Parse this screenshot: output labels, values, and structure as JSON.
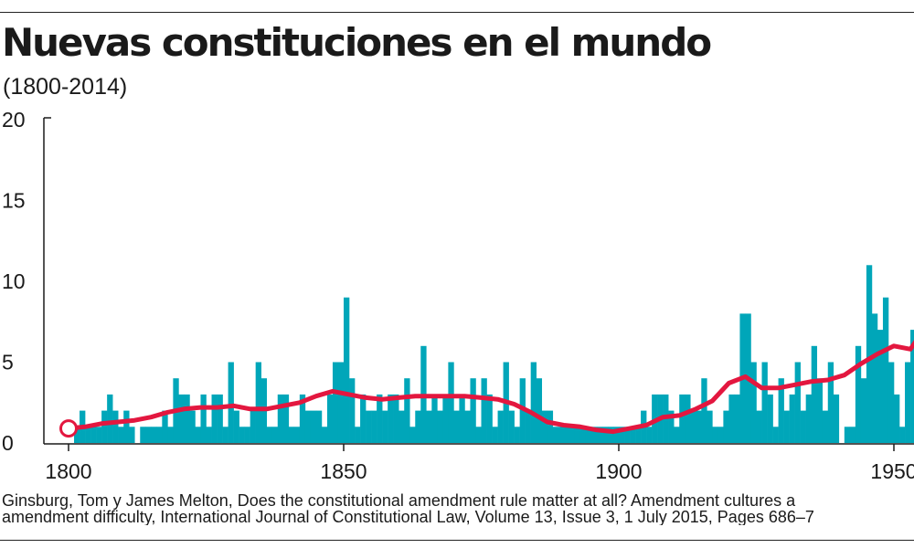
{
  "header": {
    "title": "Nuevas constituciones en el mundo",
    "subtitle": "(1800-2014)"
  },
  "source": {
    "line1": "Ginsburg, Tom y James Melton, Does the constitutional amendment rule matter at all? Amendment cultures a",
    "line2": "amendment difficulty, International Journal of Constitutional Law, Volume 13, Issue 3, 1 July 2015, Pages 686–7"
  },
  "colors": {
    "bars": "#00a6b9",
    "trend": "#e3173f",
    "marker_fill": "#ffffff",
    "axis": "#1a1a1a"
  },
  "chart_data": {
    "type": "bar",
    "title": "Nuevas constituciones en el mundo",
    "subtitle": "(1800-2014)",
    "xlabel": "",
    "ylabel": "",
    "xlim": [
      1799,
      1954
    ],
    "ylim": [
      0,
      20
    ],
    "x_ticks": [
      1800,
      1850,
      1900,
      1950
    ],
    "y_ticks": [
      0,
      5,
      10,
      15,
      20
    ],
    "grid": false,
    "legend": "none",
    "series": [
      {
        "type": "bar",
        "x": [
          1800,
          1801,
          1802,
          1803,
          1804,
          1805,
          1806,
          1807,
          1808,
          1809,
          1810,
          1811,
          1812,
          1813,
          1814,
          1815,
          1816,
          1817,
          1818,
          1819,
          1820,
          1821,
          1822,
          1823,
          1824,
          1825,
          1826,
          1827,
          1828,
          1829,
          1830,
          1831,
          1832,
          1833,
          1834,
          1835,
          1836,
          1837,
          1838,
          1839,
          1840,
          1841,
          1842,
          1843,
          1844,
          1845,
          1846,
          1847,
          1848,
          1849,
          1850,
          1851,
          1852,
          1853,
          1854,
          1855,
          1856,
          1857,
          1858,
          1859,
          1860,
          1861,
          1862,
          1863,
          1864,
          1865,
          1866,
          1867,
          1868,
          1869,
          1870,
          1871,
          1872,
          1873,
          1874,
          1875,
          1876,
          1877,
          1878,
          1879,
          1880,
          1881,
          1882,
          1883,
          1884,
          1885,
          1886,
          1887,
          1888,
          1889,
          1890,
          1891,
          1892,
          1893,
          1894,
          1895,
          1896,
          1897,
          1898,
          1899,
          1900,
          1901,
          1902,
          1903,
          1904,
          1905,
          1906,
          1907,
          1908,
          1909,
          1910,
          1911,
          1912,
          1913,
          1914,
          1915,
          1916,
          1917,
          1918,
          1919,
          1920,
          1921,
          1922,
          1923,
          1924,
          1925,
          1926,
          1927,
          1928,
          1929,
          1930,
          1931,
          1932,
          1933,
          1934,
          1935,
          1936,
          1937,
          1938,
          1939,
          1940,
          1941,
          1942,
          1943,
          1944,
          1945,
          1946,
          1947,
          1948,
          1949,
          1950,
          1951,
          1952,
          1953
        ],
        "values": [
          0,
          1,
          2,
          1,
          1,
          1,
          2,
          3,
          2,
          1,
          2,
          1,
          0,
          1,
          1,
          1,
          1,
          2,
          1,
          4,
          3,
          3,
          2,
          1,
          3,
          1,
          3,
          3,
          1,
          5,
          2,
          1,
          1,
          2,
          5,
          4,
          1,
          1,
          3,
          3,
          1,
          1,
          3,
          2,
          2,
          2,
          1,
          3,
          5,
          5,
          9,
          4,
          1,
          3,
          2,
          2,
          3,
          2,
          3,
          3,
          2,
          4,
          1,
          2,
          6,
          2,
          3,
          2,
          3,
          5,
          2,
          3,
          2,
          4,
          1,
          4,
          3,
          1,
          2,
          5,
          2,
          1,
          4,
          2,
          5,
          4,
          2,
          2,
          1,
          1,
          1,
          1,
          1,
          1,
          1,
          1,
          1,
          1,
          1,
          1,
          1,
          1,
          1,
          1,
          2,
          1,
          3,
          3,
          3,
          2,
          1,
          3,
          3,
          2,
          2,
          4,
          2,
          1,
          1,
          2,
          3,
          3,
          8,
          8,
          5,
          2,
          5,
          3,
          1,
          4,
          2,
          3,
          5,
          2,
          3,
          6,
          4,
          2,
          5,
          3,
          0,
          1,
          1,
          6,
          4,
          11,
          8,
          7,
          9,
          5,
          3,
          1,
          5,
          7
        ]
      },
      {
        "type": "line",
        "x": [
          1800,
          1803,
          1806,
          1809,
          1812,
          1815,
          1818,
          1821,
          1824,
          1827,
          1830,
          1833,
          1836,
          1839,
          1842,
          1845,
          1848,
          1851,
          1854,
          1857,
          1860,
          1863,
          1866,
          1869,
          1872,
          1875,
          1878,
          1881,
          1884,
          1887,
          1890,
          1893,
          1896,
          1899,
          1902,
          1905,
          1908,
          1911,
          1914,
          1917,
          1920,
          1923,
          1926,
          1929,
          1932,
          1935,
          1938,
          1941,
          1944,
          1947,
          1950,
          1953,
          1954
        ],
        "values": [
          0.9,
          1.0,
          1.2,
          1.3,
          1.4,
          1.6,
          1.9,
          2.1,
          2.2,
          2.2,
          2.3,
          2.1,
          2.1,
          2.3,
          2.5,
          2.9,
          3.2,
          3.0,
          2.8,
          2.7,
          2.8,
          2.9,
          2.9,
          2.9,
          2.9,
          2.8,
          2.7,
          2.4,
          1.9,
          1.3,
          1.1,
          1.0,
          0.8,
          0.7,
          0.9,
          1.1,
          1.6,
          1.7,
          2.1,
          2.6,
          3.7,
          4.1,
          3.4,
          3.4,
          3.6,
          3.8,
          3.9,
          4.2,
          4.9,
          5.5,
          6.0,
          5.8,
          6.3
        ]
      }
    ]
  }
}
